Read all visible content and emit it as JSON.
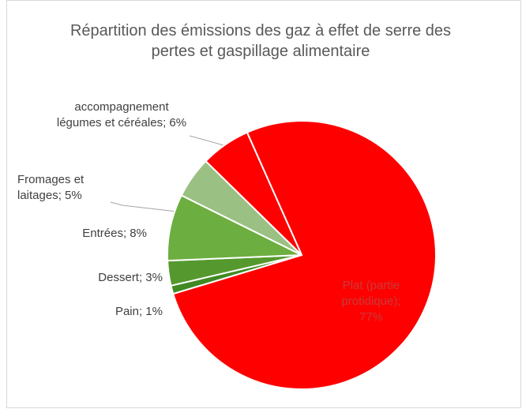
{
  "chart_data": {
    "type": "pie",
    "title": "Répartition des émissions des gaz à effet de serre des pertes et gaspillage alimentaire",
    "categories": [
      "Plat (partie protidique)",
      "Pain",
      "Dessert",
      "Entrées",
      "Fromages et laitages",
      "accompagnement légumes et céréales"
    ],
    "values": [
      77,
      1,
      3,
      8,
      5,
      6
    ],
    "value_labels": [
      "Plat (partie\nprotidique);\n77%",
      "Pain; 1%",
      "Dessert; 3%",
      "Entrées; 8%",
      "Fromages et\nlaitages; 5%",
      "accompagnement\nlégumes et céréales; 6%"
    ],
    "colors": [
      "#ff0000",
      "#3f8a22",
      "#55992e",
      "#6cae3f",
      "#9bc083",
      "#ff0000"
    ]
  }
}
